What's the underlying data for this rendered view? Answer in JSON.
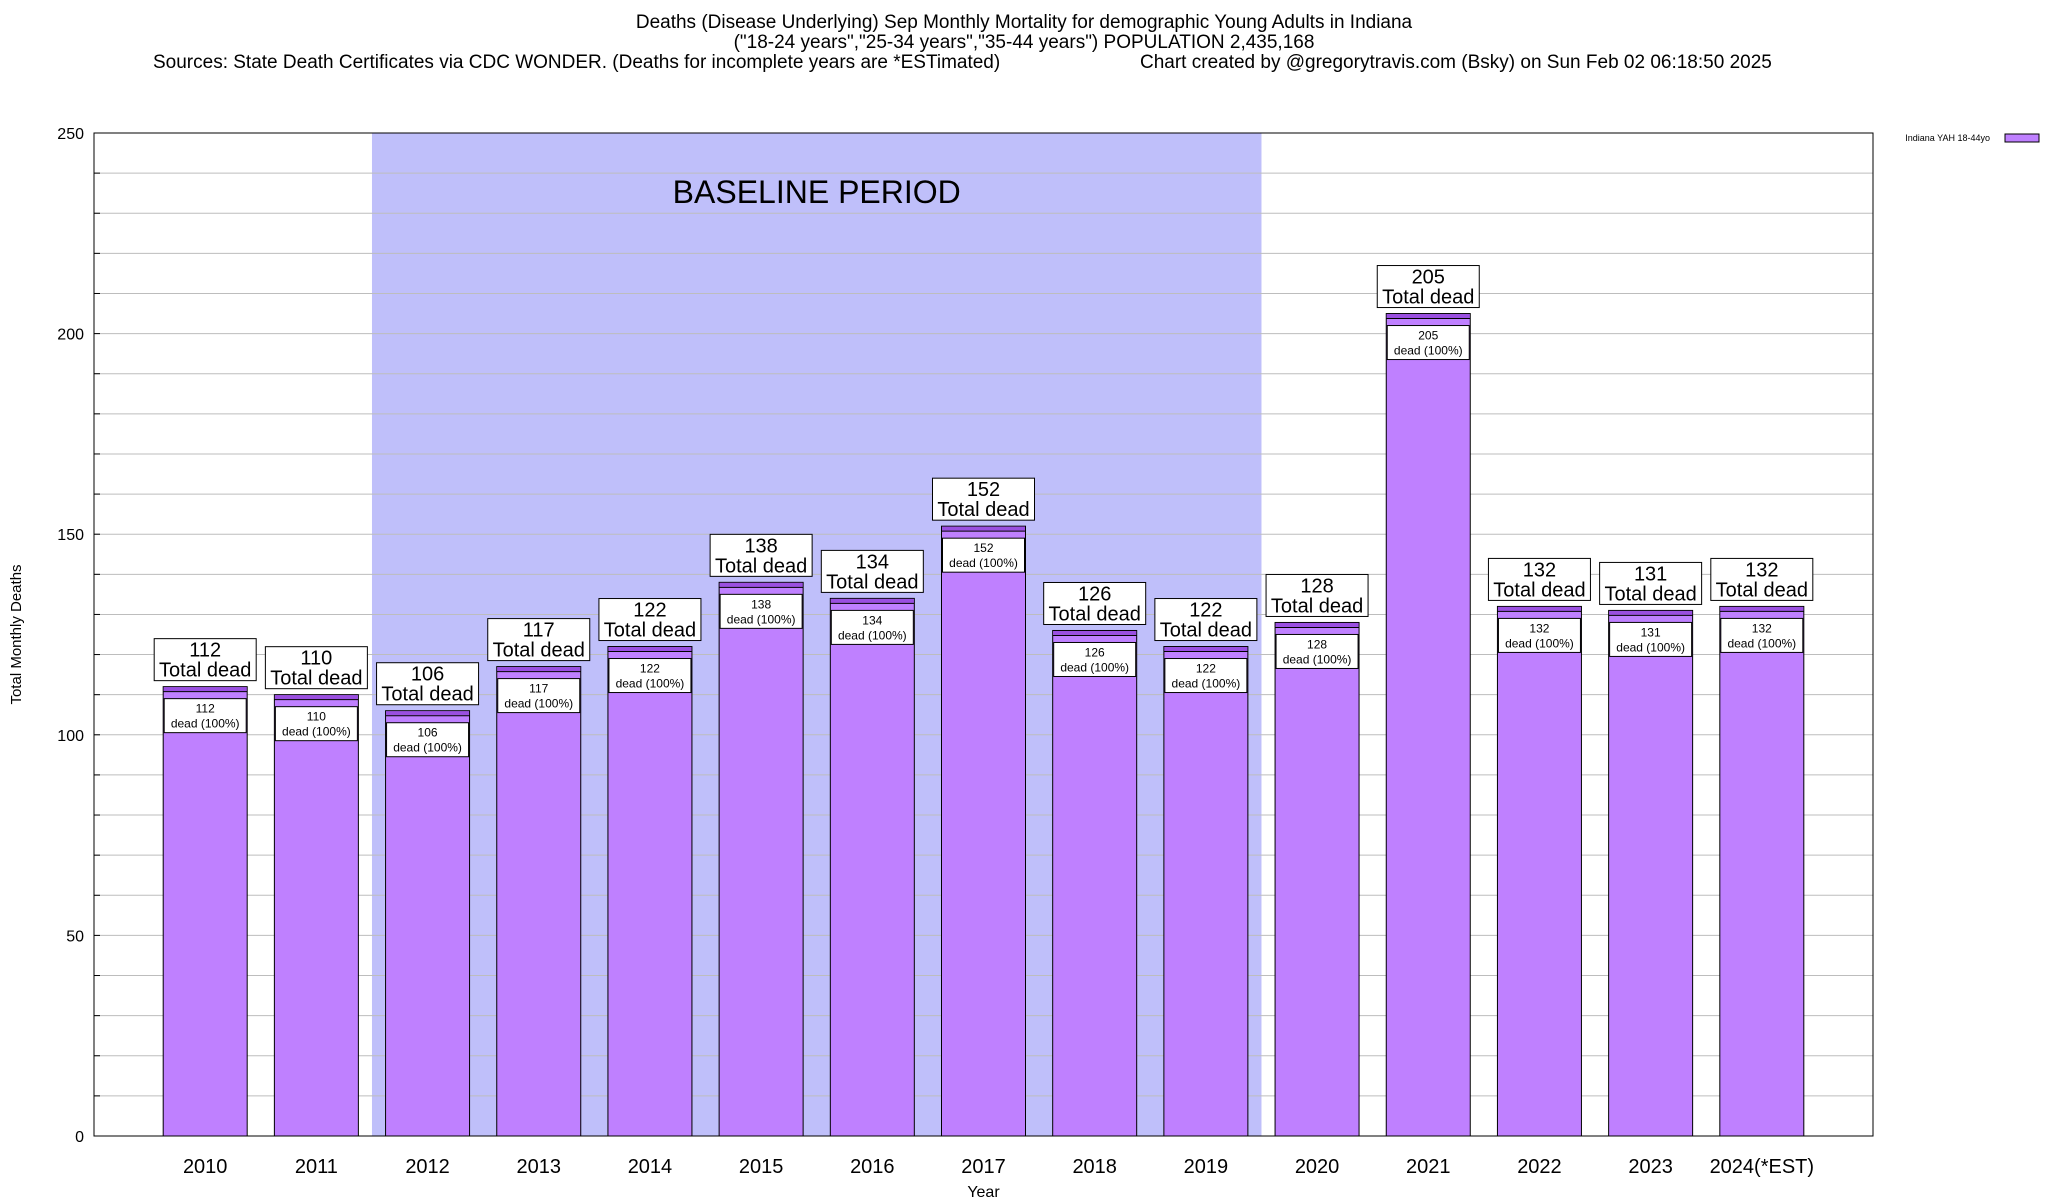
{
  "chart_data": {
    "type": "bar",
    "title_lines": [
      "Deaths (Disease Underlying) Sep Monthly Mortality for demographic Young Adults in Indiana",
      "(\"18-24 years\",\"25-34 years\",\"35-44 years\") POPULATION 2,435,168"
    ],
    "sources": "Sources: State Death Certificates via CDC WONDER. (Deaths for incomplete years are *ESTimated)",
    "credit": "Chart created by @gregorytravis.com (Bsky) on Sun Feb 02 06:18:50 2025",
    "categories": [
      "2010",
      "2011",
      "2012",
      "2013",
      "2014",
      "2015",
      "2016",
      "2017",
      "2018",
      "2019",
      "2020",
      "2021",
      "2022",
      "2023",
      "2024(*EST)"
    ],
    "series": [
      {
        "name": "Indiana YAH 18-44yo",
        "values": [
          112,
          110,
          106,
          117,
          122,
          138,
          134,
          152,
          126,
          122,
          128,
          205,
          132,
          131,
          132
        ]
      }
    ],
    "xlabel": "Year",
    "ylabel": "Total Monthly Deaths",
    "ylim": [
      0,
      250
    ],
    "yticks": [
      0,
      50,
      100,
      150,
      200,
      250
    ],
    "minor_grid_step": 10,
    "grid": true,
    "legend_position": "top-right",
    "baseline": {
      "label": "BASELINE PERIOD",
      "from_category": "2012",
      "to_category": "2019"
    },
    "top_label_suffix": "Total dead",
    "inner_label_suffix": "dead (100%)",
    "colors": {
      "bar": "#bf80ff",
      "bar_top": "#9a4fe0",
      "baseline": "#bfbffa",
      "grid": "#bdbdbd"
    }
  }
}
